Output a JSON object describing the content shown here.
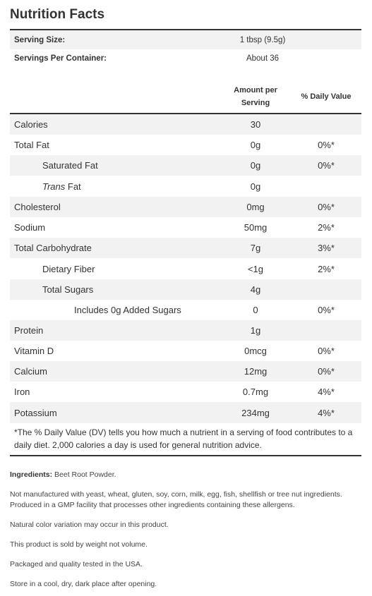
{
  "title": "Nutrition Facts",
  "serving": {
    "size_label": "Serving Size:",
    "size_value": "1 tbsp (9.5g)",
    "per_container_label": "Servings Per Container:",
    "per_container_value": "About 36"
  },
  "columns": {
    "amount_line1": "Amount per",
    "amount_line2": "Serving",
    "daily_value": "% Daily Value"
  },
  "nutrients": [
    {
      "name": "Calories",
      "amount": "30",
      "dv": ""
    },
    {
      "name": "Total Fat",
      "amount": "0g",
      "dv": "0%*"
    },
    {
      "name": "Saturated Fat",
      "amount": "0g",
      "dv": "0%*"
    },
    {
      "name_italic": "Trans",
      "name_rest": " Fat",
      "amount": "0g",
      "dv": ""
    },
    {
      "name": "Cholesterol",
      "amount": "0mg",
      "dv": "0%*"
    },
    {
      "name": "Sodium",
      "amount": "50mg",
      "dv": "2%*"
    },
    {
      "name": "Total Carbohydrate",
      "amount": "7g",
      "dv": "3%*"
    },
    {
      "name": "Dietary Fiber",
      "amount": "<1g",
      "dv": "2%*"
    },
    {
      "name": "Total Sugars",
      "amount": "4g",
      "dv": ""
    },
    {
      "name": "Includes 0g Added Sugars",
      "amount": "0",
      "dv": "0%*"
    },
    {
      "name": "Protein",
      "amount": "1g",
      "dv": ""
    },
    {
      "name": "Vitamin D",
      "amount": "0mcg",
      "dv": "0%*"
    },
    {
      "name": "Calcium",
      "amount": "12mg",
      "dv": "0%*"
    },
    {
      "name": "Iron",
      "amount": "0.7mg",
      "dv": "4%*"
    },
    {
      "name": "Potassium",
      "amount": "234mg",
      "dv": "4%*"
    }
  ],
  "footnote": "*The % Daily Value (DV) tells you how much a nutrient in a serving of food contributes to a daily diet. 2,000 calories a day is used for general nutrition advice.",
  "ingredients": {
    "label": "Ingredients:",
    "value": " Beet Root Powder."
  },
  "notes": [
    "Not manufactured with yeast, wheat, gluten, soy, corn, milk, egg, fish, shellfish or tree nut ingredients. Produced in a GMP facility that processes other ingredients containing these allergens.",
    "Natural color variation may occur in this product.",
    "This product is sold by weight not volume.",
    "Packaged and quality tested in the USA.",
    "Store in a cool, dry, dark place after opening."
  ]
}
